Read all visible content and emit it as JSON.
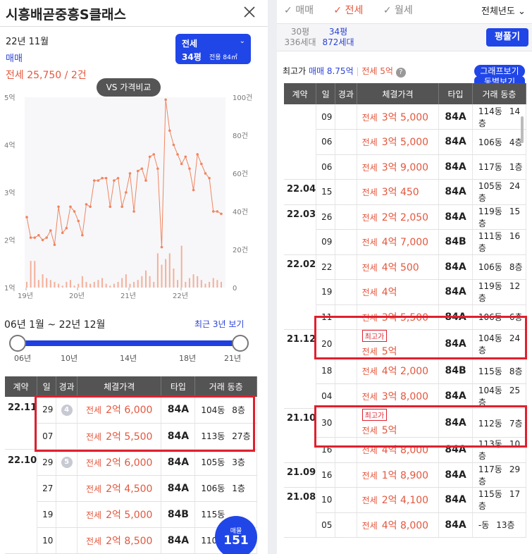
{
  "left": {
    "title": "시흥배곧중흥S클래스",
    "date": "22년 11월",
    "maemae_label": "매매",
    "jeonse_summary": "전세 25,750 / 2건",
    "area_box": {
      "type": "전세",
      "pyeong": "34평",
      "area": "전용 84㎡"
    },
    "vs_button": "VS 가격비교",
    "range_label": "06년 1월 ~ 22년 12월",
    "recent_link": "최근 3년 보기",
    "slider_ticks": [
      "06년",
      "10년",
      "14년",
      "18년",
      "21년"
    ],
    "table_headers": [
      "계약",
      "일",
      "경과",
      "체결가격",
      "타입",
      "거래 동층"
    ],
    "rows": [
      {
        "month": "22.11",
        "day": "29",
        "elapsed": "4",
        "kind": "전세",
        "price": "2억 6,000",
        "type": "84A",
        "dong": "104동",
        "floor": "8층"
      },
      {
        "month": "",
        "day": "07",
        "elapsed": "",
        "kind": "전세",
        "price": "2억 5,500",
        "type": "84A",
        "dong": "113동",
        "floor": "27층"
      },
      {
        "month": "22.10",
        "day": "29",
        "elapsed": "5",
        "kind": "전세",
        "price": "2억 6,000",
        "type": "84A",
        "dong": "105동",
        "floor": "3층"
      },
      {
        "month": "",
        "day": "27",
        "elapsed": "",
        "kind": "전세",
        "price": "2억 4,500",
        "type": "84A",
        "dong": "106동",
        "floor": "1층"
      },
      {
        "month": "",
        "day": "19",
        "elapsed": "",
        "kind": "전세",
        "price": "2억 5,000",
        "type": "84B",
        "dong": "115동",
        "floor": ""
      },
      {
        "month": "",
        "day": "10",
        "elapsed": "",
        "kind": "전세",
        "price": "2억 8,500",
        "type": "84A",
        "dong": "110동",
        "floor": ""
      }
    ],
    "float_button": {
      "small": "매물",
      "count": "151"
    }
  },
  "chart_data": {
    "type": "line",
    "y_left_ticks": [
      "5억",
      "4억",
      "3억",
      "2억",
      "1억"
    ],
    "y_right_ticks": [
      "100건",
      "80건",
      "60건",
      "40건",
      "20건",
      "0"
    ],
    "x_ticks": [
      "19년",
      "20년",
      "21년",
      "22년"
    ],
    "ylim_left": [
      1,
      5
    ],
    "ylim_right": [
      0,
      100
    ],
    "series": [
      {
        "values": [
          2.48,
          2.05,
          2.05,
          2.1,
          2.0,
          2.05,
          2.2,
          1.9,
          2.7,
          2.15,
          2.25,
          2.7,
          2.6,
          2.4,
          2.1,
          2.75,
          2.7,
          3.25,
          3.25,
          3.3,
          3.3,
          2.7,
          3.25,
          3.3,
          2.7,
          3.0,
          3.4,
          2.6,
          3.45,
          3.5,
          3.25,
          3.75,
          3.8,
          3.5,
          1.85,
          4.95,
          4.3,
          4.0,
          3.8,
          3.6,
          3.75,
          3.5,
          3.05,
          3.8,
          3.6,
          3.4,
          3.3,
          2.6,
          2.6,
          2.55
        ]
      },
      {
        "values": [
          3,
          14,
          14,
          4,
          7,
          5,
          4,
          3,
          2,
          1,
          3,
          4,
          1,
          2,
          6,
          3,
          2,
          3,
          4,
          5,
          2,
          1,
          2,
          3,
          5,
          7,
          2,
          3,
          4,
          6,
          9,
          6,
          3,
          18,
          12,
          15,
          18,
          10,
          4,
          22,
          3,
          5,
          7,
          6,
          4,
          2,
          3,
          5,
          4,
          3
        ]
      }
    ]
  },
  "right": {
    "tabs": [
      "매매",
      "전세",
      "월세"
    ],
    "active_tab": "전세",
    "year_select": "전체년도",
    "areas": [
      {
        "pyeong": "30평",
        "units": "336세대",
        "active": false
      },
      {
        "pyeong": "34평",
        "units": "872세대",
        "active": true
      }
    ],
    "calc_button": "평풀기",
    "highline_prefix": "최고가",
    "high_maemae": "매매 8.75억",
    "high_jeonse": "전세 5억",
    "help": "?",
    "graph_button": "그래프보기",
    "graph_button2": "동별보기",
    "table_headers": [
      "계약",
      "일",
      "경과",
      "체결가격",
      "타입",
      "거래 동층"
    ],
    "rows": [
      {
        "month": "",
        "day": "09",
        "kind": "전세",
        "price": "3억 5,000",
        "type": "84A",
        "dong": "114동",
        "floor": "14층",
        "chip": ""
      },
      {
        "month": "",
        "day": "06",
        "kind": "전세",
        "price": "3억 5,000",
        "type": "84A",
        "dong": "106동",
        "floor": "4층",
        "chip": ""
      },
      {
        "month": "",
        "day": "06",
        "kind": "전세",
        "price": "3억 9,000",
        "type": "84A",
        "dong": "117동",
        "floor": "1층",
        "chip": ""
      },
      {
        "month": "22.04",
        "day": "15",
        "kind": "전세",
        "price": "3억 450",
        "type": "84A",
        "dong": "105동",
        "floor": "24층",
        "chip": ""
      },
      {
        "month": "22.03",
        "day": "26",
        "kind": "전세",
        "price": "2억 2,050",
        "type": "84A",
        "dong": "119동",
        "floor": "15층",
        "chip": ""
      },
      {
        "month": "",
        "day": "09",
        "kind": "전세",
        "price": "4억 7,000",
        "type": "84B",
        "dong": "111동",
        "floor": "16층",
        "chip": ""
      },
      {
        "month": "22.02",
        "day": "22",
        "kind": "전세",
        "price": "4억 500",
        "type": "84A",
        "dong": "106동",
        "floor": "8층",
        "chip": ""
      },
      {
        "month": "",
        "day": "19",
        "kind": "전세",
        "price": "4억",
        "type": "84A",
        "dong": "119동",
        "floor": "12층",
        "chip": ""
      },
      {
        "month": "",
        "day": "11",
        "kind": "전세",
        "price": "3억 5,500",
        "type": "84A",
        "dong": "106동",
        "floor": "6층",
        "chip": ""
      },
      {
        "month": "21.12",
        "day": "20",
        "kind": "전세",
        "price": "5억",
        "type": "84A",
        "dong": "104동",
        "floor": "24층",
        "chip": "최고가"
      },
      {
        "month": "",
        "day": "18",
        "kind": "전세",
        "price": "4억 2,000",
        "type": "84B",
        "dong": "115동",
        "floor": "8층",
        "chip": ""
      },
      {
        "month": "",
        "day": "04",
        "kind": "전세",
        "price": "3억 8,000",
        "type": "84A",
        "dong": "104동",
        "floor": "25층",
        "chip": ""
      },
      {
        "month": "21.10",
        "day": "30",
        "kind": "전세",
        "price": "5억",
        "type": "84A",
        "dong": "112동",
        "floor": "7층",
        "chip": "최고가"
      },
      {
        "month": "",
        "day": "16",
        "kind": "전세",
        "price": "4억 8,000",
        "type": "84A",
        "dong": "113동",
        "floor": "10층",
        "chip": ""
      },
      {
        "month": "21.09",
        "day": "16",
        "kind": "전세",
        "price": "1억 8,900",
        "type": "84A",
        "dong": "117동",
        "floor": "29층",
        "chip": ""
      },
      {
        "month": "21.08",
        "day": "10",
        "kind": "전세",
        "price": "2억 4,100",
        "type": "84A",
        "dong": "115동",
        "floor": "17층",
        "chip": ""
      },
      {
        "month": "",
        "day": "05",
        "kind": "전세",
        "price": "4억 8,000",
        "type": "84A",
        "dong": "-동",
        "floor": "13층",
        "chip": ""
      }
    ]
  }
}
